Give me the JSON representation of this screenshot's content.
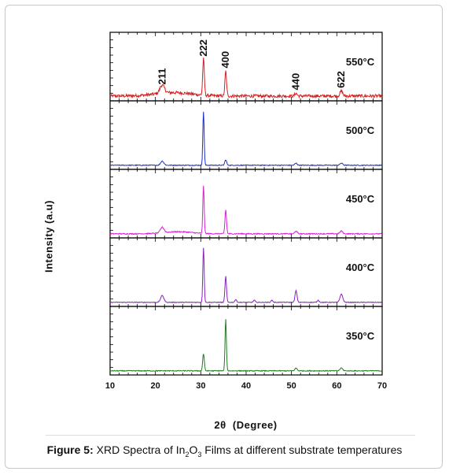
{
  "chart_data": {
    "type": "line",
    "xlabel_prefix": "2θ",
    "xlabel_unit": "(Degree)",
    "ylabel": "Intensity (a.u)",
    "xlim": [
      10,
      70
    ],
    "x_ticks": [
      10,
      20,
      30,
      40,
      50,
      60,
      70
    ],
    "ylim": [
      0,
      1
    ],
    "grid": false,
    "panels": [
      {
        "temperature": "550°C",
        "color": "#d42020",
        "baseline": 0.07,
        "peaks": [
          {
            "x": 21.5,
            "y": 0.12,
            "w": 0.5
          },
          {
            "x": 24.0,
            "y": 0.05,
            "w": 4.0
          },
          {
            "x": 30.6,
            "y": 0.53,
            "w": 0.18
          },
          {
            "x": 35.5,
            "y": 0.36,
            "w": 0.18
          },
          {
            "x": 51.0,
            "y": 0.04,
            "w": 0.25
          },
          {
            "x": 61.0,
            "y": 0.07,
            "w": 0.3
          }
        ],
        "noise": 0.045,
        "peak_labels": [
          {
            "x": 21.5,
            "text": "211"
          },
          {
            "x": 30.6,
            "text": "222"
          },
          {
            "x": 35.5,
            "text": "400"
          },
          {
            "x": 51.0,
            "text": "440"
          },
          {
            "x": 61.0,
            "text": "622"
          }
        ]
      },
      {
        "temperature": "500°C",
        "color": "#1c2fc4",
        "baseline": 0.06,
        "peaks": [
          {
            "x": 21.5,
            "y": 0.06,
            "w": 0.35
          },
          {
            "x": 30.6,
            "y": 0.78,
            "w": 0.15
          },
          {
            "x": 35.5,
            "y": 0.08,
            "w": 0.2
          },
          {
            "x": 51.0,
            "y": 0.03,
            "w": 0.25
          },
          {
            "x": 61.0,
            "y": 0.03,
            "w": 0.3
          }
        ],
        "noise": 0.012,
        "peak_labels": []
      },
      {
        "temperature": "450°C",
        "color": "#d61fd6",
        "baseline": 0.06,
        "peaks": [
          {
            "x": 21.5,
            "y": 0.08,
            "w": 0.4
          },
          {
            "x": 25.0,
            "y": 0.03,
            "w": 3.0
          },
          {
            "x": 30.6,
            "y": 0.7,
            "w": 0.15
          },
          {
            "x": 35.5,
            "y": 0.35,
            "w": 0.17
          },
          {
            "x": 51.0,
            "y": 0.04,
            "w": 0.25
          },
          {
            "x": 61.0,
            "y": 0.04,
            "w": 0.3
          }
        ],
        "noise": 0.015,
        "peak_labels": []
      },
      {
        "temperature": "400°C",
        "color": "#8a1fc4",
        "baseline": 0.06,
        "peaks": [
          {
            "x": 21.5,
            "y": 0.1,
            "w": 0.35
          },
          {
            "x": 30.6,
            "y": 0.8,
            "w": 0.15
          },
          {
            "x": 35.5,
            "y": 0.38,
            "w": 0.17
          },
          {
            "x": 37.7,
            "y": 0.04,
            "w": 0.2
          },
          {
            "x": 41.8,
            "y": 0.03,
            "w": 0.2
          },
          {
            "x": 45.7,
            "y": 0.03,
            "w": 0.2
          },
          {
            "x": 51.0,
            "y": 0.17,
            "w": 0.22
          },
          {
            "x": 55.9,
            "y": 0.03,
            "w": 0.2
          },
          {
            "x": 61.0,
            "y": 0.12,
            "w": 0.3
          }
        ],
        "noise": 0.01,
        "peak_labels": []
      },
      {
        "temperature": "350°C",
        "color": "#217a21",
        "baseline": 0.06,
        "peaks": [
          {
            "x": 30.6,
            "y": 0.25,
            "w": 0.18
          },
          {
            "x": 35.5,
            "y": 0.76,
            "w": 0.15
          },
          {
            "x": 51.0,
            "y": 0.04,
            "w": 0.25
          },
          {
            "x": 61.0,
            "y": 0.04,
            "w": 0.3
          }
        ],
        "noise": 0.012,
        "peak_labels": []
      }
    ]
  },
  "caption": {
    "figure_label": "Figure 5:",
    "text_a": " XRD Spectra of In",
    "sub_a": "2",
    "text_b": "O",
    "sub_b": "3",
    "text_c": " Films at different substrate temperatures"
  }
}
